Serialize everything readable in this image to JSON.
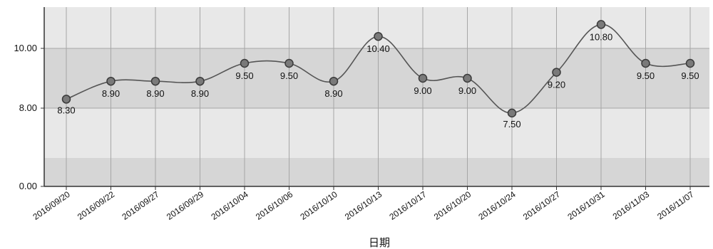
{
  "chart_data": {
    "type": "line",
    "title": "",
    "xlabel": "日期",
    "ylabel": "",
    "categories": [
      "2016/09/20",
      "2016/09/22",
      "2016/09/27",
      "2016/09/29",
      "2016/10/04",
      "2016/10/06",
      "2016/10/10",
      "2016/10/13",
      "2016/10/17",
      "2016/10/20",
      "2016/10/24",
      "2016/10/27",
      "2016/10/31",
      "2016/11/03",
      "2016/11/07"
    ],
    "series": [
      {
        "values": [
          8.3,
          8.9,
          8.9,
          8.9,
          9.5,
          9.5,
          8.9,
          10.4,
          9.0,
          9.0,
          7.5,
          9.2,
          10.8,
          9.5,
          9.5
        ],
        "value_labels": [
          "8.30",
          "8.90",
          "8.90",
          "8.90",
          "9.50",
          "9.50",
          "8.90",
          "10.40",
          "9.00",
          "9.00",
          "7.50",
          "9.20",
          "10.80",
          "9.50",
          "9.50"
        ]
      }
    ],
    "y_ticks": [
      {
        "value": 0,
        "label": "0.00"
      },
      {
        "value": 8,
        "label": "8.00"
      },
      {
        "value": 10,
        "label": "10.00"
      }
    ],
    "y_scale": "broken axis: 0.00 then 8.00 to 10.00",
    "grid": true,
    "legend": "none",
    "colors": {
      "plot_background": "#e8e8e8",
      "band_dark": "#d6d6d6",
      "grid_line": "#a6a6a6",
      "line": "#555555",
      "marker_fill": "#7a7a7a",
      "marker_stroke": "#3a3a3a",
      "axis": "#333333"
    }
  }
}
